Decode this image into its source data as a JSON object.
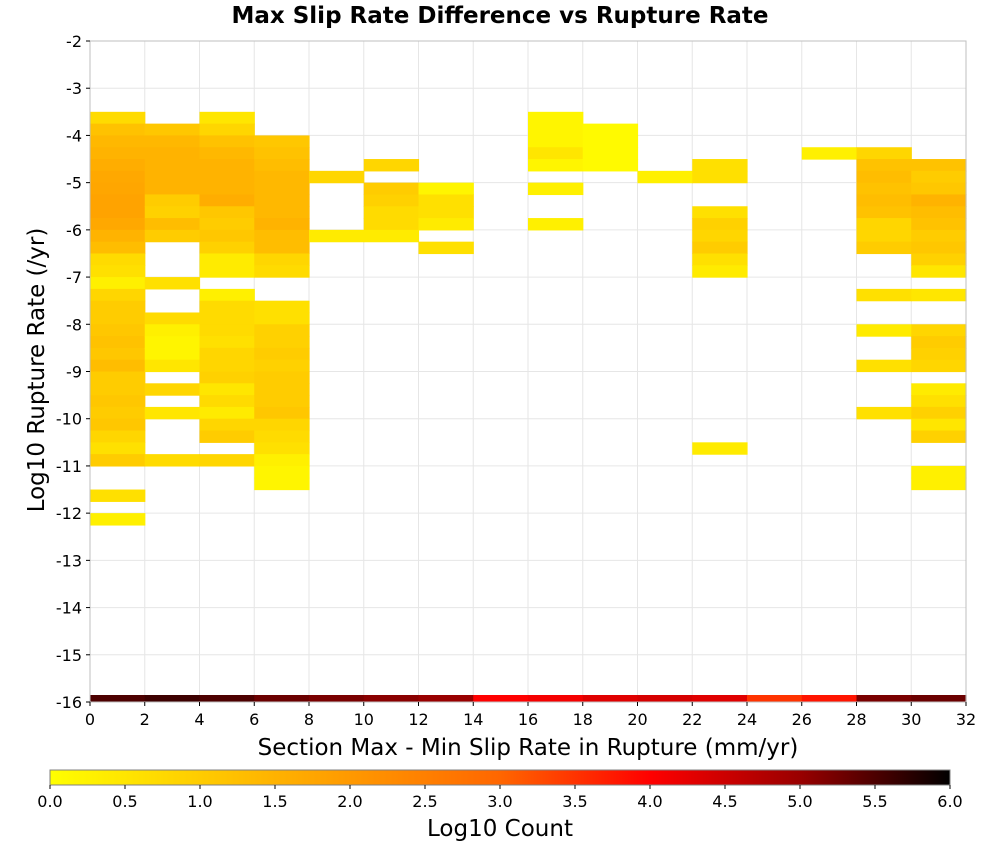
{
  "chart_data": {
    "type": "heatmap",
    "title": "Max Slip Rate Difference vs Rupture Rate",
    "xlabel": "Section Max - Min Slip Rate in Rupture (mm/yr)",
    "ylabel": "Log10 Rupture Rate (/yr)",
    "xlim": [
      0,
      32
    ],
    "ylim": [
      -16,
      -2
    ],
    "x_ticks": [
      "0",
      "2",
      "4",
      "6",
      "8",
      "10",
      "12",
      "14",
      "16",
      "18",
      "20",
      "22",
      "24",
      "26",
      "28",
      "30",
      "32"
    ],
    "y_ticks": [
      "-2",
      "-3",
      "-4",
      "-5",
      "-6",
      "-7",
      "-8",
      "-9",
      "-10",
      "-11",
      "-12",
      "-13",
      "-14",
      "-15",
      "-16"
    ],
    "x_bin_width": 2,
    "y_bin_height": 0.25,
    "grid": true,
    "colorbar": {
      "label": "Log10 Count",
      "range": [
        0,
        6
      ],
      "ticks": [
        "0.0",
        "0.5",
        "1.0",
        "1.5",
        "2.0",
        "2.5",
        "3.0",
        "3.5",
        "4.0",
        "4.5",
        "5.0",
        "5.5",
        "6.0"
      ],
      "colors": [
        "#ffff00",
        "#ffcc00",
        "#ff9900",
        "#ff6600",
        "#ff0000",
        "#990000",
        "#000000"
      ]
    },
    "columns": [
      {
        "x0": 0,
        "cells": [
          [
            -3.5,
            0.7
          ],
          [
            -3.75,
            1.2
          ],
          [
            -4.0,
            1.4
          ],
          [
            -4.25,
            1.5
          ],
          [
            -4.5,
            1.6
          ],
          [
            -4.75,
            1.7
          ],
          [
            -5.0,
            1.75
          ],
          [
            -5.25,
            1.8
          ],
          [
            -5.5,
            1.8
          ],
          [
            -5.75,
            1.7
          ],
          [
            -6.0,
            1.5
          ],
          [
            -6.25,
            1.3
          ],
          [
            -6.5,
            0.7
          ],
          [
            -6.75,
            0.6
          ],
          [
            -7.0,
            0.3
          ],
          [
            -7.25,
            0.8
          ],
          [
            -7.5,
            1.0
          ],
          [
            -7.75,
            1.0
          ],
          [
            -8.0,
            1.1
          ],
          [
            -8.25,
            1.2
          ],
          [
            -8.5,
            1.1
          ],
          [
            -8.75,
            1.3
          ],
          [
            -9.0,
            1.0
          ],
          [
            -9.25,
            1.0
          ],
          [
            -9.5,
            1.1
          ],
          [
            -9.75,
            1.0
          ],
          [
            -10.0,
            1.1
          ],
          [
            -10.25,
            0.8
          ],
          [
            -10.5,
            0.6
          ],
          [
            -10.75,
            1.0
          ],
          [
            -11.5,
            0.6
          ],
          [
            -12.0,
            0.3
          ]
        ]
      },
      {
        "x0": 2,
        "cells": [
          [
            -3.75,
            1.1
          ],
          [
            -4.0,
            1.4
          ],
          [
            -4.25,
            1.5
          ],
          [
            -4.5,
            1.5
          ],
          [
            -4.75,
            1.5
          ],
          [
            -5.0,
            1.5
          ],
          [
            -5.25,
            1.0
          ],
          [
            -5.5,
            0.9
          ],
          [
            -5.75,
            1.3
          ],
          [
            -6.0,
            1.0
          ],
          [
            -7.0,
            0.6
          ],
          [
            -7.75,
            0.7
          ],
          [
            -8.0,
            0.3
          ],
          [
            -8.25,
            0.2
          ],
          [
            -8.5,
            0.2
          ],
          [
            -8.75,
            0.5
          ],
          [
            -9.25,
            0.8
          ],
          [
            -9.75,
            0.5
          ],
          [
            -10.75,
            0.7
          ]
        ]
      },
      {
        "x0": 4,
        "cells": [
          [
            -3.5,
            0.5
          ],
          [
            -3.75,
            0.8
          ],
          [
            -4.0,
            1.2
          ],
          [
            -4.25,
            1.4
          ],
          [
            -4.5,
            1.5
          ],
          [
            -4.75,
            1.5
          ],
          [
            -5.0,
            1.5
          ],
          [
            -5.25,
            1.6
          ],
          [
            -5.5,
            1.1
          ],
          [
            -5.75,
            1.0
          ],
          [
            -6.0,
            1.1
          ],
          [
            -6.25,
            0.9
          ],
          [
            -6.5,
            0.4
          ],
          [
            -6.75,
            0.4
          ],
          [
            -7.25,
            0.3
          ],
          [
            -7.5,
            0.7
          ],
          [
            -7.75,
            0.7
          ],
          [
            -8.0,
            0.7
          ],
          [
            -8.25,
            0.6
          ],
          [
            -8.5,
            0.8
          ],
          [
            -8.75,
            0.8
          ],
          [
            -9.0,
            0.9
          ],
          [
            -9.25,
            0.5
          ],
          [
            -9.5,
            0.7
          ],
          [
            -9.75,
            0.4
          ],
          [
            -10.0,
            0.8
          ],
          [
            -10.25,
            1.0
          ],
          [
            -10.75,
            0.8
          ]
        ]
      },
      {
        "x0": 6,
        "cells": [
          [
            -4.0,
            1.1
          ],
          [
            -4.25,
            1.2
          ],
          [
            -4.5,
            1.3
          ],
          [
            -4.75,
            1.4
          ],
          [
            -5.0,
            1.4
          ],
          [
            -5.25,
            1.4
          ],
          [
            -5.5,
            1.4
          ],
          [
            -5.75,
            1.5
          ],
          [
            -6.0,
            1.3
          ],
          [
            -6.25,
            1.3
          ],
          [
            -6.5,
            0.8
          ],
          [
            -6.75,
            0.7
          ],
          [
            -7.5,
            0.6
          ],
          [
            -7.75,
            0.6
          ],
          [
            -8.0,
            0.9
          ],
          [
            -8.25,
            0.9
          ],
          [
            -8.5,
            1.0
          ],
          [
            -8.75,
            0.9
          ],
          [
            -9.0,
            1.0
          ],
          [
            -9.25,
            1.0
          ],
          [
            -9.5,
            1.0
          ],
          [
            -9.75,
            1.1
          ],
          [
            -10.0,
            0.8
          ],
          [
            -10.25,
            0.7
          ],
          [
            -10.5,
            0.6
          ],
          [
            -10.75,
            0.3
          ],
          [
            -11.0,
            0.2
          ],
          [
            -11.25,
            0.2
          ]
        ]
      },
      {
        "x0": 8,
        "cells": [
          [
            -4.75,
            0.8
          ],
          [
            -6.0,
            0.4
          ]
        ]
      },
      {
        "x0": 10,
        "cells": [
          [
            -4.5,
            0.8
          ],
          [
            -5.0,
            1.0
          ],
          [
            -5.25,
            0.9
          ],
          [
            -5.5,
            0.7
          ],
          [
            -5.75,
            0.7
          ],
          [
            -6.0,
            0.4
          ]
        ]
      },
      {
        "x0": 12,
        "cells": [
          [
            -5.0,
            0.2
          ],
          [
            -5.25,
            0.6
          ],
          [
            -5.5,
            0.6
          ],
          [
            -5.75,
            0.4
          ],
          [
            -6.25,
            0.6
          ]
        ]
      },
      {
        "x0": 16,
        "cells": [
          [
            -3.5,
            0.2
          ],
          [
            -3.75,
            0.2
          ],
          [
            -4.0,
            0.2
          ],
          [
            -4.25,
            0.5
          ],
          [
            -4.5,
            0.2
          ],
          [
            -5.0,
            0.3
          ],
          [
            -5.75,
            0.3
          ]
        ]
      },
      {
        "x0": 18,
        "cells": [
          [
            -3.75,
            0.1
          ],
          [
            -4.0,
            0.1
          ],
          [
            -4.25,
            0.1
          ],
          [
            -4.5,
            0.1
          ]
        ]
      },
      {
        "x0": 20,
        "cells": [
          [
            -4.75,
            0.3
          ]
        ]
      },
      {
        "x0": 22,
        "cells": [
          [
            -4.5,
            0.6
          ],
          [
            -4.75,
            0.6
          ],
          [
            -5.5,
            0.6
          ],
          [
            -5.75,
            0.9
          ],
          [
            -6.0,
            0.8
          ],
          [
            -6.25,
            1.0
          ],
          [
            -6.5,
            0.6
          ],
          [
            -6.75,
            0.4
          ],
          [
            -10.5,
            0.4
          ]
        ]
      },
      {
        "x0": 26,
        "cells": [
          [
            -4.25,
            0.3
          ]
        ]
      },
      {
        "x0": 28,
        "cells": [
          [
            -4.25,
            0.8
          ],
          [
            -4.5,
            1.2
          ],
          [
            -4.75,
            1.3
          ],
          [
            -5.0,
            1.2
          ],
          [
            -5.25,
            1.3
          ],
          [
            -5.5,
            1.2
          ],
          [
            -5.75,
            0.8
          ],
          [
            -6.0,
            0.8
          ],
          [
            -6.25,
            1.0
          ],
          [
            -7.25,
            0.6
          ],
          [
            -8.0,
            0.4
          ],
          [
            -8.75,
            0.6
          ],
          [
            -9.75,
            0.6
          ]
        ]
      },
      {
        "x0": 30,
        "cells": [
          [
            -4.5,
            1.2
          ],
          [
            -4.75,
            1.0
          ],
          [
            -5.0,
            1.1
          ],
          [
            -5.25,
            1.5
          ],
          [
            -5.5,
            1.3
          ],
          [
            -5.75,
            1.2
          ],
          [
            -6.0,
            1.0
          ],
          [
            -6.25,
            1.1
          ],
          [
            -6.5,
            0.9
          ],
          [
            -6.75,
            0.5
          ],
          [
            -7.25,
            0.5
          ],
          [
            -8.0,
            0.8
          ],
          [
            -8.25,
            1.0
          ],
          [
            -8.5,
            0.9
          ],
          [
            -8.75,
            0.8
          ],
          [
            -9.25,
            0.4
          ],
          [
            -9.5,
            0.6
          ],
          [
            -9.75,
            0.9
          ],
          [
            -10.0,
            0.5
          ],
          [
            -10.25,
            0.9
          ],
          [
            -11.0,
            0.3
          ],
          [
            -11.25,
            0.3
          ]
        ]
      }
    ],
    "bottom_strip": [
      {
        "x0": 0,
        "value": 5.5
      },
      {
        "x0": 2,
        "value": 5.6
      },
      {
        "x0": 4,
        "value": 5.5
      },
      {
        "x0": 6,
        "value": 5.3
      },
      {
        "x0": 8,
        "value": 5.2
      },
      {
        "x0": 10,
        "value": 5.1
      },
      {
        "x0": 12,
        "value": 5.0
      },
      {
        "x0": 14,
        "value": 4.0
      },
      {
        "x0": 16,
        "value": 4.1
      },
      {
        "x0": 18,
        "value": 4.3
      },
      {
        "x0": 20,
        "value": 4.4
      },
      {
        "x0": 22,
        "value": 4.3
      },
      {
        "x0": 24,
        "value": 3.5
      },
      {
        "x0": 26,
        "value": 3.8
      },
      {
        "x0": 28,
        "value": 5.2
      },
      {
        "x0": 30,
        "value": 5.3
      }
    ]
  }
}
